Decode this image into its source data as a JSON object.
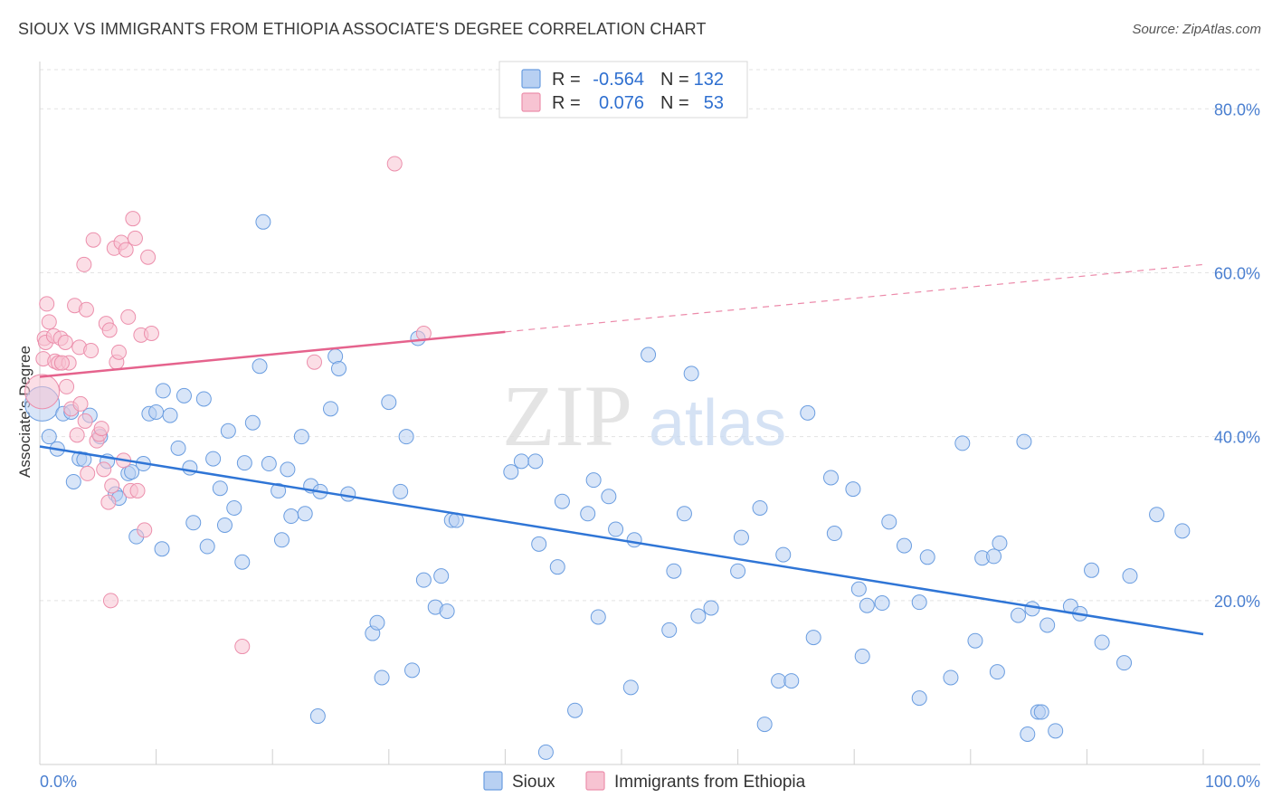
{
  "title": "SIOUX VS IMMIGRANTS FROM ETHIOPIA ASSOCIATE'S DEGREE CORRELATION CHART",
  "source": "Source: ZipAtlas.com",
  "watermark": {
    "zip": "ZIP",
    "atlas": "atlas"
  },
  "legend": {
    "rows": [
      {
        "r_label": "R =",
        "r_value": "-0.564",
        "n_label": "N =",
        "n_value": "132",
        "color": "#a9c6ef"
      },
      {
        "r_label": "R =",
        "r_value": "0.076",
        "n_label": "N =",
        "n_value": "53",
        "color": "#f6b6c8"
      }
    ]
  },
  "chart_data": {
    "type": "scatter",
    "xlabel": "",
    "ylabel": "Associate's Degree",
    "xlim": [
      0,
      100
    ],
    "ylim": [
      0,
      85
    ],
    "x_tick_labels": [
      "0.0%",
      "100.0%"
    ],
    "y_ticks": [
      20,
      40,
      60,
      80
    ],
    "y_tick_labels": [
      "20.0%",
      "40.0%",
      "60.0%",
      "80.0%"
    ],
    "grid": true,
    "legend_position": "bottom",
    "series": [
      {
        "name": "Sioux",
        "color": "#6a9de0",
        "fill": "#b8d0f2",
        "trend": {
          "x0": 0,
          "y0": 38.8,
          "x1": 100,
          "y1": 15.9,
          "solid_until": 100
        },
        "points": [
          [
            0.2,
            44.0
          ],
          [
            0.8,
            40.0
          ],
          [
            1.5,
            38.5
          ],
          [
            2.0,
            42.8
          ],
          [
            2.7,
            43.0
          ],
          [
            2.9,
            34.5
          ],
          [
            3.4,
            37.3
          ],
          [
            3.8,
            37.2
          ],
          [
            4.3,
            42.6
          ],
          [
            5.2,
            40.0
          ],
          [
            5.8,
            37.0
          ],
          [
            6.5,
            33.0
          ],
          [
            6.8,
            32.5
          ],
          [
            7.6,
            35.5
          ],
          [
            7.9,
            35.7
          ],
          [
            8.3,
            27.8
          ],
          [
            8.9,
            36.7
          ],
          [
            9.4,
            42.8
          ],
          [
            10.0,
            43.0
          ],
          [
            10.5,
            26.3
          ],
          [
            10.6,
            45.6
          ],
          [
            11.2,
            42.6
          ],
          [
            11.9,
            38.6
          ],
          [
            12.4,
            45.0
          ],
          [
            12.9,
            36.2
          ],
          [
            13.2,
            29.5
          ],
          [
            14.1,
            44.6
          ],
          [
            14.4,
            26.6
          ],
          [
            14.9,
            37.3
          ],
          [
            15.5,
            33.7
          ],
          [
            15.9,
            29.2
          ],
          [
            16.2,
            40.7
          ],
          [
            16.7,
            31.3
          ],
          [
            17.4,
            24.7
          ],
          [
            17.6,
            36.8
          ],
          [
            18.3,
            41.7
          ],
          [
            18.9,
            48.6
          ],
          [
            19.2,
            66.2
          ],
          [
            19.7,
            36.7
          ],
          [
            20.5,
            33.4
          ],
          [
            20.8,
            27.4
          ],
          [
            21.3,
            36.0
          ],
          [
            21.6,
            30.3
          ],
          [
            22.5,
            40.0
          ],
          [
            22.8,
            30.6
          ],
          [
            23.3,
            34.0
          ],
          [
            23.9,
            5.9
          ],
          [
            24.1,
            33.3
          ],
          [
            25.0,
            43.4
          ],
          [
            25.4,
            49.8
          ],
          [
            25.7,
            48.3
          ],
          [
            26.5,
            33.0
          ],
          [
            28.6,
            16.0
          ],
          [
            29.0,
            17.3
          ],
          [
            29.4,
            10.6
          ],
          [
            30.0,
            44.2
          ],
          [
            31.0,
            33.3
          ],
          [
            31.5,
            40.0
          ],
          [
            32.0,
            11.5
          ],
          [
            32.5,
            52.0
          ],
          [
            33.0,
            22.5
          ],
          [
            34.0,
            19.2
          ],
          [
            34.5,
            23.0
          ],
          [
            35.0,
            18.7
          ],
          [
            35.4,
            29.8
          ],
          [
            35.8,
            29.8
          ],
          [
            40.5,
            35.7
          ],
          [
            41.4,
            37.0
          ],
          [
            42.6,
            37.0
          ],
          [
            42.9,
            26.9
          ],
          [
            43.5,
            1.5
          ],
          [
            44.5,
            24.1
          ],
          [
            44.9,
            32.1
          ],
          [
            46.0,
            6.6
          ],
          [
            47.1,
            30.6
          ],
          [
            47.6,
            34.7
          ],
          [
            48.0,
            18.0
          ],
          [
            48.9,
            32.7
          ],
          [
            49.5,
            28.7
          ],
          [
            50.8,
            9.4
          ],
          [
            51.1,
            27.4
          ],
          [
            52.3,
            50.0
          ],
          [
            54.1,
            16.4
          ],
          [
            54.5,
            23.6
          ],
          [
            55.4,
            30.6
          ],
          [
            56.0,
            47.7
          ],
          [
            56.6,
            18.1
          ],
          [
            57.7,
            19.1
          ],
          [
            60.0,
            23.6
          ],
          [
            60.3,
            27.7
          ],
          [
            61.9,
            31.3
          ],
          [
            62.3,
            4.9
          ],
          [
            63.5,
            10.2
          ],
          [
            63.9,
            25.6
          ],
          [
            64.6,
            10.2
          ],
          [
            66.0,
            42.9
          ],
          [
            66.5,
            15.5
          ],
          [
            68.0,
            35.0
          ],
          [
            68.3,
            28.2
          ],
          [
            69.9,
            33.6
          ],
          [
            70.4,
            21.4
          ],
          [
            70.7,
            13.2
          ],
          [
            71.1,
            19.4
          ],
          [
            72.4,
            19.7
          ],
          [
            73.0,
            29.6
          ],
          [
            74.3,
            26.7
          ],
          [
            75.6,
            8.1
          ],
          [
            75.6,
            19.8
          ],
          [
            76.3,
            25.3
          ],
          [
            78.3,
            10.6
          ],
          [
            79.3,
            39.2
          ],
          [
            80.4,
            15.1
          ],
          [
            81.0,
            25.2
          ],
          [
            82.0,
            25.4
          ],
          [
            82.3,
            11.3
          ],
          [
            82.5,
            27.0
          ],
          [
            84.1,
            18.2
          ],
          [
            84.6,
            39.4
          ],
          [
            84.9,
            3.7
          ],
          [
            85.3,
            19.0
          ],
          [
            85.8,
            6.4
          ],
          [
            86.1,
            6.4
          ],
          [
            86.6,
            17.0
          ],
          [
            87.3,
            4.1
          ],
          [
            88.6,
            19.3
          ],
          [
            89.4,
            18.4
          ],
          [
            90.4,
            23.7
          ],
          [
            91.3,
            14.9
          ],
          [
            93.7,
            23.0
          ],
          [
            93.2,
            12.4
          ],
          [
            96.0,
            30.5
          ],
          [
            98.2,
            28.5
          ]
        ]
      },
      {
        "name": "Immigrants from Ethiopia",
        "color": "#ec8fac",
        "fill": "#f7c3d2",
        "trend": {
          "x0": 0,
          "y0": 47.3,
          "x1": 100,
          "y1": 61.0,
          "solid_until": 40
        },
        "points": [
          [
            0.2,
            45.5
          ],
          [
            0.3,
            49.5
          ],
          [
            0.4,
            52.0
          ],
          [
            0.5,
            51.5
          ],
          [
            0.6,
            56.2
          ],
          [
            0.8,
            54.0
          ],
          [
            1.2,
            52.3
          ],
          [
            1.3,
            49.2
          ],
          [
            1.6,
            49.0
          ],
          [
            1.8,
            52.0
          ],
          [
            2.2,
            51.5
          ],
          [
            2.3,
            46.1
          ],
          [
            2.5,
            49.0
          ],
          [
            2.7,
            43.4
          ],
          [
            3.0,
            56.0
          ],
          [
            3.2,
            40.2
          ],
          [
            3.4,
            50.9
          ],
          [
            3.5,
            44.0
          ],
          [
            3.8,
            61.0
          ],
          [
            4.0,
            55.5
          ],
          [
            4.1,
            35.5
          ],
          [
            4.4,
            50.5
          ],
          [
            4.6,
            64.0
          ],
          [
            4.9,
            39.5
          ],
          [
            5.1,
            40.3
          ],
          [
            5.3,
            41.0
          ],
          [
            5.5,
            36.0
          ],
          [
            5.7,
            53.8
          ],
          [
            5.9,
            32.0
          ],
          [
            6.0,
            53.0
          ],
          [
            6.1,
            20.0
          ],
          [
            6.2,
            34.0
          ],
          [
            6.4,
            63.0
          ],
          [
            6.6,
            49.1
          ],
          [
            6.8,
            50.3
          ],
          [
            7.0,
            63.7
          ],
          [
            7.2,
            37.1
          ],
          [
            7.4,
            62.8
          ],
          [
            7.6,
            54.6
          ],
          [
            7.8,
            33.4
          ],
          [
            8.0,
            66.6
          ],
          [
            8.2,
            64.2
          ],
          [
            8.4,
            33.4
          ],
          [
            8.7,
            52.4
          ],
          [
            9.0,
            28.6
          ],
          [
            9.3,
            61.9
          ],
          [
            9.6,
            52.6
          ],
          [
            17.4,
            14.4
          ],
          [
            23.6,
            49.1
          ],
          [
            30.5,
            73.3
          ],
          [
            33.0,
            52.6
          ],
          [
            1.9,
            49.0
          ],
          [
            3.9,
            41.9
          ]
        ]
      }
    ]
  }
}
